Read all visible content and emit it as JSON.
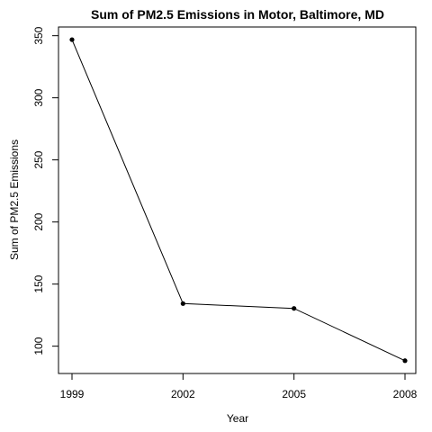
{
  "chart_data": {
    "type": "line",
    "title": "Sum of PM2.5 Emissions in Motor, Baltimore, MD",
    "xlabel": "Year",
    "ylabel": "Sum of PM2.5 Emissions",
    "x": [
      "1999",
      "2002",
      "2005",
      "2008"
    ],
    "y": [
      346.8,
      134.3,
      130.4,
      88.3
    ],
    "xticks": [
      "1999",
      "2002",
      "2005",
      "2008"
    ],
    "yticks": [
      100,
      150,
      200,
      250,
      300,
      350
    ],
    "ylim": [
      78,
      357
    ],
    "grid": false,
    "legend": "none",
    "colors": {
      "line": "#000000",
      "point": "#000000",
      "axis": "#000000"
    }
  }
}
